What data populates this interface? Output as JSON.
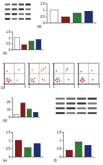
{
  "chart_data": [
    {
      "type": "bar",
      "title": "(a)",
      "categories": [
        null,
        null,
        null,
        null
      ],
      "values": [
        1.0,
        0.45,
        0.75,
        0.9
      ],
      "colors": [
        "#ffffff",
        "#8b1a1a",
        "#2e7d32",
        "#1f2f7a"
      ],
      "ylim": [
        0,
        1.5
      ],
      "yticks": [
        0,
        0.5,
        1,
        1.5
      ],
      "tick_labels": "y"
    },
    {
      "type": "bar",
      "title": "(b)",
      "categories": [
        null,
        null,
        null,
        null
      ],
      "values": [
        1.0,
        0.4,
        0.7,
        0.85
      ],
      "colors": [
        "#ffffff",
        "#8b1a1a",
        "#2e7d32",
        "#1f2f7a"
      ],
      "ylim": [
        0,
        1.5
      ],
      "yticks": [
        0,
        0.5,
        1,
        1.5
      ],
      "tick_labels": "y"
    },
    {
      "type": "scatter",
      "title": "(c)",
      "x": [
        0.5,
        0.8,
        1.1,
        1.3,
        0.9,
        1.6,
        0.6,
        1.2,
        3.2,
        3.6,
        0.7,
        1.0
      ],
      "values": [
        0.6,
        0.9,
        0.5,
        1.1,
        1.4,
        0.8,
        1.2,
        0.7,
        0.9,
        3.4,
        3.1,
        0.4
      ],
      "color": "#d62728",
      "xlim": [
        0,
        5
      ],
      "ylim": [
        0,
        5
      ],
      "tick_labels": false
    },
    {
      "type": "scatter",
      "x": [
        0.6,
        0.9,
        1.2,
        1.4,
        3.1,
        3.5,
        3.8,
        0.8,
        1.1,
        3.3,
        4.0,
        0.5
      ],
      "values": [
        0.7,
        1.0,
        0.6,
        1.3,
        3.2,
        3.6,
        0.9,
        3.4,
        0.5,
        1.1,
        3.9,
        1.2
      ],
      "color": "#d62728",
      "xlim": [
        0,
        5
      ],
      "ylim": [
        0,
        5
      ],
      "tick_labels": false
    },
    {
      "type": "scatter",
      "x": [
        0.5,
        0.9,
        1.3,
        1.1,
        3.2,
        3.6,
        0.7,
        1.5,
        0.8,
        3.4,
        1.0,
        0.6
      ],
      "values": [
        0.8,
        0.6,
        1.0,
        1.4,
        3.3,
        1.0,
        3.1,
        0.7,
        1.2,
        3.7,
        0.5,
        1.1
      ],
      "color": "#d62728",
      "xlim": [
        0,
        5
      ],
      "ylim": [
        0,
        5
      ],
      "tick_labels": false
    },
    {
      "type": "scatter",
      "x": [
        0.6,
        1.0,
        1.3,
        0.8,
        3.3,
        1.5,
        0.7,
        1.2,
        3.5,
        0.9,
        1.1,
        0.5
      ],
      "values": [
        0.7,
        0.5,
        1.1,
        1.3,
        3.2,
        0.8,
        3.0,
        0.6,
        1.0,
        1.0,
        1.5,
        0.9
      ],
      "color": "#d62728",
      "xlim": [
        0,
        5
      ],
      "ylim": [
        0,
        5
      ],
      "tick_labels": false
    },
    {
      "type": "bar",
      "title": "(d)",
      "categories": [
        null,
        null,
        null,
        null
      ],
      "values": [
        3,
        18,
        10,
        6
      ],
      "colors": [
        "#ffffff",
        "#8b1a1a",
        "#2e7d32",
        "#1f2f7a"
      ],
      "ylim": [
        0,
        25
      ],
      "yticks": [
        0,
        10,
        20
      ],
      "tick_labels": "y"
    },
    {
      "type": "bar",
      "title": "(e)",
      "categories": [
        null,
        null,
        null
      ],
      "values": [
        1.0,
        0.55,
        0.8
      ],
      "colors": [
        "#8b1a1a",
        "#2e7d32",
        "#1f2f7a"
      ],
      "ylim": [
        0,
        1.5
      ],
      "yticks": [
        0,
        0.5,
        1,
        1.5
      ],
      "tick_labels": "y"
    },
    {
      "type": "bar",
      "title": "(f)",
      "categories": [
        null,
        null,
        null
      ],
      "values": [
        0.4,
        0.9,
        0.7
      ],
      "colors": [
        "#8b1a1a",
        "#2e7d32",
        "#1f2f7a"
      ],
      "ylim": [
        0,
        1.5
      ],
      "yticks": [
        0,
        0.5,
        1,
        1.5
      ],
      "tick_labels": "y"
    }
  ]
}
